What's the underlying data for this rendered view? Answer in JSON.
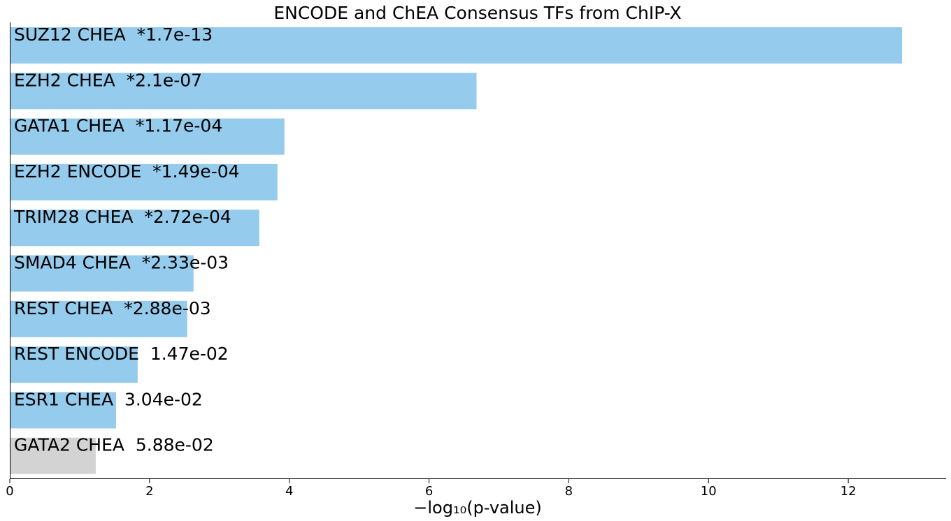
{
  "chart_data": {
    "type": "bar",
    "orientation": "horizontal",
    "title": "ENCODE and ChEA Consensus TFs from ChIP-X",
    "xlabel": "−log₁₀(p-value)",
    "ylabel": "",
    "xlim": [
      0,
      13.4
    ],
    "xticks": [
      0,
      2,
      4,
      6,
      8,
      10,
      12
    ],
    "grid": false,
    "legend": "none",
    "colors": {
      "significant": "#95cbec",
      "not_significant": "#d3d3d3",
      "text": "#000000"
    },
    "categories": [
      "SUZ12 CHEA",
      "EZH2 CHEA",
      "GATA1 CHEA",
      "EZH2 ENCODE",
      "TRIM28 CHEA",
      "SMAD4 CHEA",
      "REST CHEA",
      "REST ENCODE",
      "ESR1 CHEA",
      "GATA2 CHEA"
    ],
    "values": [
      12.77,
      6.68,
      3.93,
      3.83,
      3.57,
      2.63,
      2.54,
      1.83,
      1.52,
      1.23
    ],
    "bar_labels": [
      "SUZ12 CHEA  *1.7e-13",
      "EZH2 CHEA  *2.1e-07",
      "GATA1 CHEA  *1.17e-04",
      "EZH2 ENCODE  *1.49e-04",
      "TRIM28 CHEA  *2.72e-04",
      "SMAD4 CHEA  *2.33e-03",
      "REST CHEA  *2.88e-03",
      "REST ENCODE  1.47e-02",
      "ESR1 CHEA  3.04e-02",
      "GATA2 CHEA  5.88e-02"
    ],
    "significant": [
      true,
      true,
      true,
      true,
      true,
      true,
      true,
      false,
      false,
      false
    ],
    "bar_colors": [
      "#95cbec",
      "#95cbec",
      "#95cbec",
      "#95cbec",
      "#95cbec",
      "#95cbec",
      "#95cbec",
      "#95cbec",
      "#95cbec",
      "#d3d3d3"
    ]
  }
}
